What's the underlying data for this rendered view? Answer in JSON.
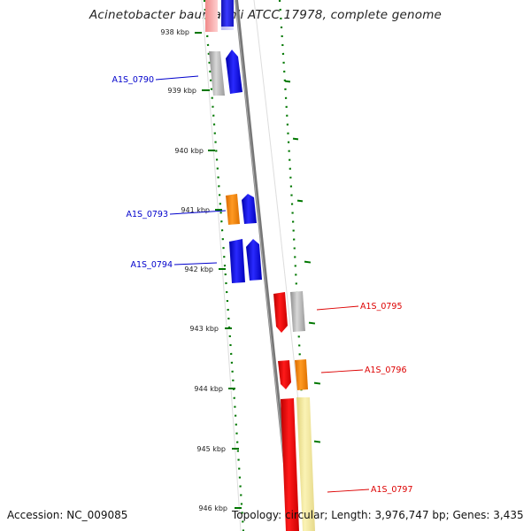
{
  "title": "Acinetobacter baumannii ATCC 17978, complete genome",
  "accession_text": "Accession: NC_009085",
  "stats_text": "Topology: circular; Length: 3,976,747 bp; Genes: 3,435",
  "ticks": [
    "938 kbp",
    "939 kbp",
    "940 kbp",
    "941 kbp",
    "942 kbp",
    "943 kbp",
    "944 kbp",
    "945 kbp",
    "946 kbp"
  ],
  "gene_labels": [
    {
      "text": "A1S_0790",
      "color": "#0000cc"
    },
    {
      "text": "A1S_0793",
      "color": "#0000cc"
    },
    {
      "text": "A1S_0794",
      "color": "#0000cc"
    },
    {
      "text": "A1S_0795",
      "color": "#dd0000"
    },
    {
      "text": "A1S_0796",
      "color": "#dd0000"
    },
    {
      "text": "A1S_0797",
      "color": "#dd0000"
    }
  ],
  "colors": {
    "blue": "#0000ee",
    "red": "#ee0000",
    "orange": "#ff8800",
    "gray": "#aaaaaa",
    "pale_yellow": "#f2e88a",
    "backbone": "#777777",
    "gc_dots": "#007700"
  }
}
